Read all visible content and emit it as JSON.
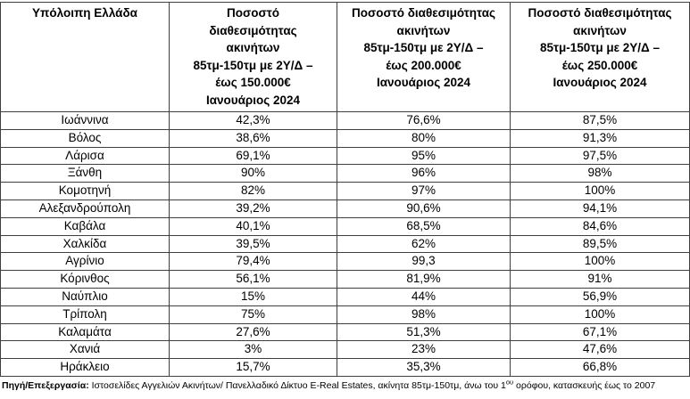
{
  "header": {
    "region": "Υπόλοιπη Ελλάδα",
    "col150": [
      "Ποσοστό",
      "διαθεσιμότητας",
      "ακινήτων",
      "85τμ-150τμ με 2Υ/Δ –",
      "έως 150.000€",
      "Ιανουάριος 2024"
    ],
    "col200": [
      "Ποσοστό διαθεσιμότητας",
      "ακινήτων",
      "85τμ-150τμ με 2Υ/Δ –",
      "έως 200.000€",
      "Ιανουάριος 2024"
    ],
    "col250": [
      "Ποσοστό διαθεσιμότητας",
      "ακινήτων",
      "85τμ-150τμ με 2Υ/Δ –",
      "έως 250.000€",
      "Ιανουάριος 2024"
    ]
  },
  "chart_data": {
    "type": "table",
    "columns": [
      "Υπόλοιπη Ελλάδα",
      "Ποσοστό διαθεσιμότητας ακινήτων 85τμ-150τμ με 2Υ/Δ – έως 150.000€ Ιανουάριος 2024",
      "Ποσοστό διαθεσιμότητας ακινήτων 85τμ-150τμ με 2Υ/Δ – έως 200.000€ Ιανουάριος 2024",
      "Ποσοστό διαθεσιμότητας ακινήτων 85τμ-150τμ με 2Υ/Δ – έως 250.000€ Ιανουάριος 2024"
    ],
    "rows": [
      [
        "Ιωάννινα",
        "42,3%",
        "76,6%",
        "87,5%"
      ],
      [
        "Βόλος",
        "38,6%",
        "80%",
        "91,3%"
      ],
      [
        "Λάρισα",
        "69,1%",
        "95%",
        "97,5%"
      ],
      [
        "Ξάνθη",
        "90%",
        "96%",
        "98%"
      ],
      [
        "Κομοτηνή",
        "82%",
        "97%",
        "100%"
      ],
      [
        "Αλεξανδρούπολη",
        "39,2%",
        "90,6%",
        "94,1%"
      ],
      [
        "Καβάλα",
        "40,1%",
        "68,5%",
        "84,6%"
      ],
      [
        "Χαλκίδα",
        "39,5%",
        "62%",
        "89,5%"
      ],
      [
        "Αγρίνιο",
        "79,4%",
        "99,3",
        "100%"
      ],
      [
        "Κόρινθος",
        "56,1%",
        "81,9%",
        "91%"
      ],
      [
        "Ναύπλιο",
        "15%",
        "44%",
        "56,9%"
      ],
      [
        "Τρίπολη",
        "75%",
        "98%",
        "100%"
      ],
      [
        "Καλαμάτα",
        "27,6%",
        "51,3%",
        "67,1%"
      ],
      [
        "Χανιά",
        "3%",
        "23%",
        "47,6%"
      ],
      [
        "Ηράκλειο",
        "15,7%",
        "35,3%",
        "66,8%"
      ]
    ],
    "note": "Πηγή/Επεξεργασία: Ιστοσελίδες Αγγελιών Ακινήτων/ Πανελλαδικό Δίκτυο E-Real Estates, ακίνητα 85τμ-150τμ, άνω του 1ου ορόφου, κατασκευής έως το 2007"
  },
  "footer": {
    "label": "Πηγή/Επεξεργασία:",
    "text_before_sup": " Ιστοσελίδες Αγγελιών Ακινήτων/ Πανελλαδικό Δίκτυο E-Real Estates, ακίνητα 85τμ-150τμ,  άνω του 1",
    "sup": "ου",
    "text_after_sup": " ορόφου, κατασκευής έως το 2007"
  }
}
